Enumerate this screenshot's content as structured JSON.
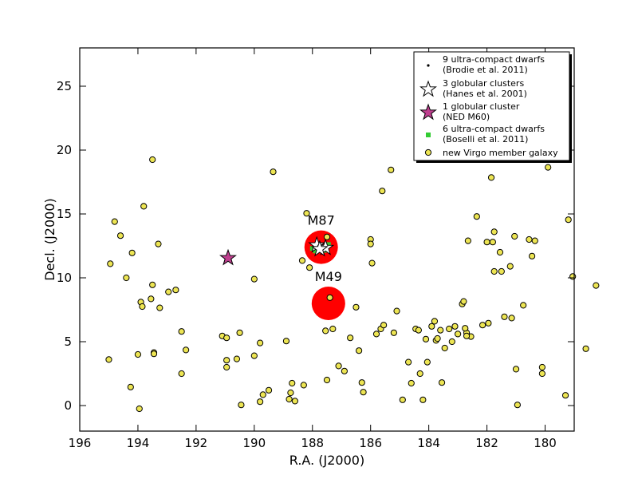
{
  "chart_data": {
    "type": "scatter",
    "xlabel": "R.A. (J2000)",
    "ylabel": "Decl. (J2000)",
    "xlim": [
      196,
      179
    ],
    "ylim": [
      -2,
      28
    ],
    "x_inverted": true,
    "xticks": [
      196,
      194,
      192,
      190,
      188,
      186,
      184,
      182,
      180
    ],
    "yticks": [
      0,
      5,
      10,
      15,
      20,
      25
    ],
    "legend_position": "top-right",
    "annotations": [
      {
        "label": "M87",
        "x": 187.7,
        "y": 12.4
      },
      {
        "label": "M49",
        "x": 187.45,
        "y": 8.0
      }
    ],
    "galaxy_markers": [
      {
        "name": "M87",
        "x": 187.7,
        "y": 12.4,
        "color": "#ff0000"
      },
      {
        "name": "M49",
        "x": 187.45,
        "y": 8.0,
        "color": "#ff0000"
      }
    ],
    "series": [
      {
        "name": "9 ultra-compact dwarfs",
        "name2": "(Brodie et al. 2011)",
        "marker": "dot",
        "color": "#000000",
        "points": [
          [
            187.72,
            12.45
          ],
          [
            187.68,
            12.38
          ],
          [
            187.76,
            12.32
          ],
          [
            187.65,
            12.5
          ],
          [
            187.8,
            12.42
          ],
          [
            187.7,
            12.28
          ],
          [
            187.62,
            12.35
          ],
          [
            187.74,
            12.55
          ],
          [
            187.66,
            12.44
          ]
        ]
      },
      {
        "name": "3 globular clusters",
        "name2": "(Hanes et al. 2001)",
        "marker": "star-open",
        "color": "#ffffff",
        "points": [
          [
            187.85,
            12.55
          ],
          [
            187.55,
            12.35
          ],
          [
            187.75,
            12.25
          ]
        ]
      },
      {
        "name": "1 globular cluster",
        "name2": "(NED M60)",
        "marker": "star-filled",
        "color": "#bf3f8f",
        "points": [
          [
            190.9,
            11.55
          ]
        ]
      },
      {
        "name": "6 ultra-compact dwarfs",
        "name2": "(Boselli et al. 2011)",
        "marker": "square",
        "color": "#33cc33",
        "points": [
          [
            188.0,
            12.3
          ],
          [
            187.5,
            12.45
          ],
          [
            187.85,
            12.6
          ],
          [
            187.6,
            12.15
          ],
          [
            187.45,
            12.6
          ],
          [
            187.9,
            12.1
          ]
        ]
      },
      {
        "name": "new Virgo member galaxy",
        "name2": "",
        "marker": "circle",
        "color": "#ede553",
        "points": [
          [
            194.95,
            11.1
          ],
          [
            194.8,
            14.4
          ],
          [
            194.6,
            13.3
          ],
          [
            194.4,
            10.0
          ],
          [
            194.2,
            11.95
          ],
          [
            194.25,
            1.45
          ],
          [
            195.0,
            3.6
          ],
          [
            194.0,
            4.0
          ],
          [
            193.95,
            -0.25
          ],
          [
            193.8,
            15.6
          ],
          [
            193.9,
            8.1
          ],
          [
            193.85,
            7.75
          ],
          [
            193.55,
            8.35
          ],
          [
            193.45,
            4.15
          ],
          [
            193.45,
            4.05
          ],
          [
            193.5,
            9.45
          ],
          [
            193.5,
            19.25
          ],
          [
            193.3,
            12.65
          ],
          [
            193.25,
            7.65
          ],
          [
            192.95,
            8.9
          ],
          [
            192.7,
            9.05
          ],
          [
            192.5,
            5.8
          ],
          [
            192.5,
            2.5
          ],
          [
            192.35,
            4.35
          ],
          [
            191.1,
            5.45
          ],
          [
            190.95,
            3.55
          ],
          [
            190.95,
            3.0
          ],
          [
            190.95,
            5.3
          ],
          [
            190.6,
            3.65
          ],
          [
            190.5,
            5.7
          ],
          [
            190.45,
            0.05
          ],
          [
            190.0,
            9.9
          ],
          [
            190.0,
            3.9
          ],
          [
            189.8,
            4.9
          ],
          [
            189.8,
            0.3
          ],
          [
            189.7,
            0.85
          ],
          [
            189.5,
            1.2
          ],
          [
            189.35,
            18.3
          ],
          [
            188.9,
            5.05
          ],
          [
            188.7,
            1.75
          ],
          [
            188.8,
            0.5
          ],
          [
            188.75,
            1.0
          ],
          [
            188.6,
            0.35
          ],
          [
            188.3,
            1.6
          ],
          [
            188.2,
            15.05
          ],
          [
            188.35,
            11.35
          ],
          [
            188.1,
            10.8
          ],
          [
            187.5,
            13.2
          ],
          [
            187.4,
            8.45
          ],
          [
            187.5,
            2.0
          ],
          [
            187.55,
            5.85
          ],
          [
            187.3,
            6.0
          ],
          [
            187.1,
            3.1
          ],
          [
            186.9,
            2.7
          ],
          [
            186.7,
            5.3
          ],
          [
            186.5,
            7.7
          ],
          [
            186.4,
            4.3
          ],
          [
            186.3,
            1.8
          ],
          [
            186.25,
            1.05
          ],
          [
            186.0,
            13.0
          ],
          [
            186.0,
            12.65
          ],
          [
            185.95,
            11.15
          ],
          [
            185.8,
            5.6
          ],
          [
            185.65,
            6.0
          ],
          [
            185.55,
            6.3
          ],
          [
            185.6,
            16.8
          ],
          [
            185.3,
            18.45
          ],
          [
            185.1,
            7.4
          ],
          [
            185.2,
            5.7
          ],
          [
            184.9,
            0.45
          ],
          [
            184.7,
            3.4
          ],
          [
            184.6,
            1.75
          ],
          [
            184.45,
            6.0
          ],
          [
            184.35,
            5.9
          ],
          [
            184.3,
            2.5
          ],
          [
            184.2,
            0.45
          ],
          [
            184.1,
            5.2
          ],
          [
            184.05,
            3.4
          ],
          [
            183.9,
            6.2
          ],
          [
            183.8,
            6.6
          ],
          [
            183.75,
            5.1
          ],
          [
            183.7,
            5.25
          ],
          [
            183.6,
            5.9
          ],
          [
            183.55,
            1.8
          ],
          [
            183.45,
            4.5
          ],
          [
            183.3,
            6.0
          ],
          [
            183.2,
            5.0
          ],
          [
            183.1,
            6.2
          ],
          [
            183.0,
            5.6
          ],
          [
            182.85,
            7.95
          ],
          [
            182.8,
            8.15
          ],
          [
            182.7,
            5.7
          ],
          [
            182.75,
            6.05
          ],
          [
            182.55,
            5.4
          ],
          [
            182.7,
            5.45
          ],
          [
            182.65,
            12.9
          ],
          [
            182.35,
            14.8
          ],
          [
            182.0,
            12.8
          ],
          [
            182.15,
            6.3
          ],
          [
            181.95,
            6.45
          ],
          [
            181.85,
            17.85
          ],
          [
            181.75,
            13.6
          ],
          [
            181.8,
            12.8
          ],
          [
            181.75,
            10.5
          ],
          [
            181.5,
            10.5
          ],
          [
            181.55,
            12.0
          ],
          [
            181.4,
            6.95
          ],
          [
            181.2,
            10.9
          ],
          [
            181.15,
            6.85
          ],
          [
            181.05,
            13.25
          ],
          [
            181.0,
            2.85
          ],
          [
            180.95,
            0.05
          ],
          [
            180.75,
            7.85
          ],
          [
            180.55,
            13.0
          ],
          [
            180.45,
            11.7
          ],
          [
            180.35,
            12.9
          ],
          [
            180.1,
            3.0
          ],
          [
            180.1,
            2.5
          ],
          [
            179.9,
            18.65
          ],
          [
            179.3,
            0.8
          ],
          [
            179.2,
            14.55
          ],
          [
            179.05,
            10.1
          ],
          [
            178.6,
            4.45
          ],
          [
            178.25,
            9.4
          ]
        ]
      }
    ]
  }
}
